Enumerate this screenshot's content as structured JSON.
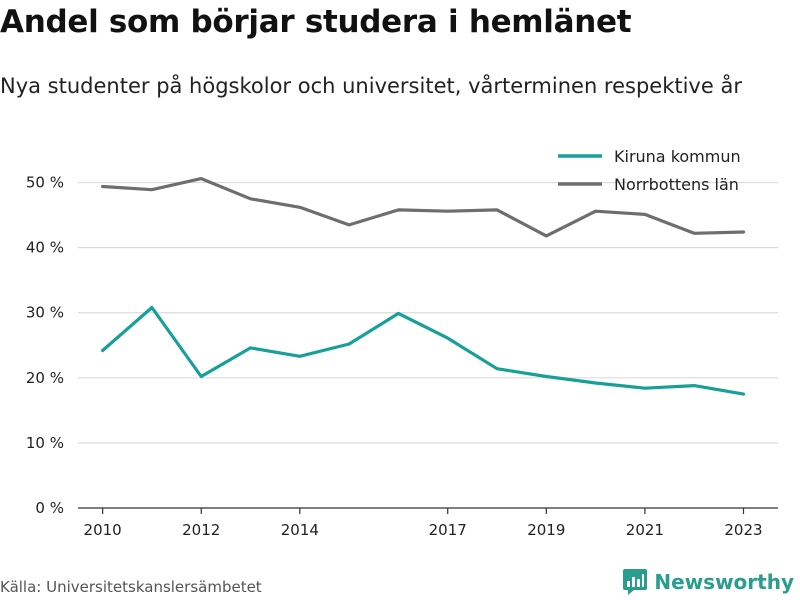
{
  "header": {
    "title": "Andel som börjar studera i hemlänet",
    "subtitle": "Nya studenter på högskolor och universitet, vårterminen respektive år"
  },
  "footer": {
    "source": "Källa: Universitetskanslersämbetet",
    "brand": "Newsworthy",
    "brand_color": "#2a9d8f"
  },
  "chart_data": {
    "type": "line",
    "title": "Andel som börjar studera i hemlänet",
    "xlabel": "",
    "ylabel": "",
    "x": [
      2010,
      2011,
      2012,
      2013,
      2014,
      2015,
      2016,
      2017,
      2018,
      2019,
      2020,
      2021,
      2022,
      2023
    ],
    "xlim": [
      2009.5,
      2023.7
    ],
    "ylim": [
      0,
      55
    ],
    "x_ticks": [
      2010,
      2012,
      2014,
      2017,
      2019,
      2021,
      2023
    ],
    "y_ticks": [
      0,
      10,
      20,
      30,
      40,
      50
    ],
    "y_tick_labels": [
      "0 %",
      "10 %",
      "20 %",
      "30 %",
      "40 %",
      "50 %"
    ],
    "grid": true,
    "legend_position": "top-right",
    "series": [
      {
        "name": "Kiruna kommun",
        "color": "#16a097",
        "values": [
          24.2,
          30.8,
          20.2,
          24.6,
          23.3,
          25.2,
          29.9,
          26.1,
          21.4,
          20.2,
          19.2,
          18.4,
          18.8,
          17.5
        ]
      },
      {
        "name": "Norrbottens län",
        "color": "#6e6e6e",
        "values": [
          49.4,
          48.9,
          50.6,
          47.5,
          46.2,
          43.5,
          45.8,
          45.6,
          45.8,
          41.8,
          45.6,
          45.1,
          42.2,
          42.4
        ]
      }
    ]
  }
}
